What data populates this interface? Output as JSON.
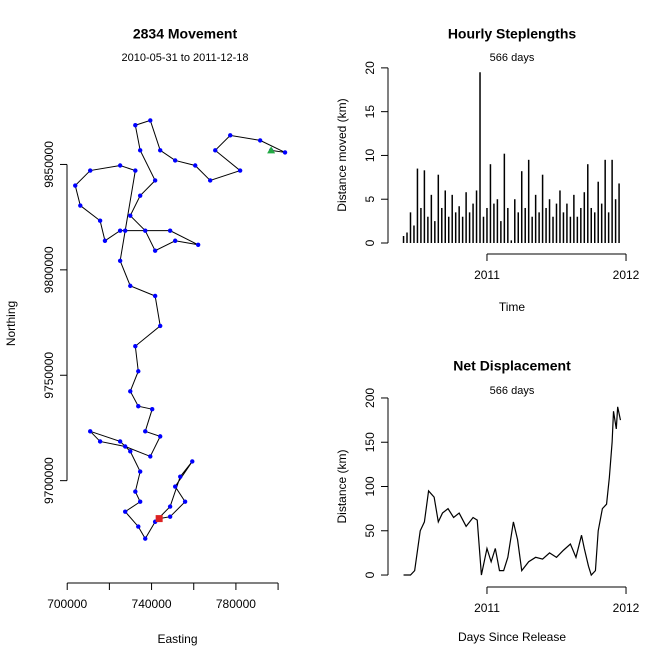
{
  "chart_data": [
    {
      "type": "track",
      "title": "2834 Movement",
      "subtitle": "2010-05-31 to 2011-12-18",
      "x_label": "Easting",
      "y_label": "Northing",
      "xlim": [
        698000,
        806600
      ],
      "ylim": [
        9650500,
        9898600
      ],
      "xticks": [
        700000,
        740000,
        780000
      ],
      "xminor_ticks": [
        720000,
        760000,
        800000
      ],
      "yticks": [
        9700000,
        9750000,
        9800000,
        9850000
      ],
      "line_color": "#000000",
      "point_color": "#0000ff",
      "start_color": "#22aa44",
      "end_color": "#dd2222",
      "x": [
        796700,
        803300,
        791500,
        777300,
        770200,
        782000,
        767800,
        760700,
        751200,
        744100,
        739400,
        732300,
        734600,
        741700,
        734600,
        729900,
        737000,
        741700,
        751200,
        762100,
        748800,
        725100,
        717900,
        715600,
        706200,
        703800,
        710900,
        725100,
        732300,
        727500,
        725100,
        729900,
        741700,
        744100,
        732300,
        733700,
        729900,
        733700,
        740300,
        737000,
        744100,
        739400,
        727500,
        715600,
        710900,
        725100,
        729900,
        734600,
        732300,
        734600,
        727500,
        733700,
        737000,
        741700,
        748800,
        753600,
        759300,
        751200,
        755900,
        748800,
        743600
      ],
      "y": [
        9856700,
        9855700,
        9861400,
        9863800,
        9856700,
        9847100,
        9842400,
        9849500,
        9851900,
        9856700,
        9870900,
        9868600,
        9856700,
        9842400,
        9835200,
        9825700,
        9818600,
        9809100,
        9813800,
        9811900,
        9818600,
        9818600,
        9813800,
        9823300,
        9830500,
        9840000,
        9847100,
        9849500,
        9847100,
        9818600,
        9804300,
        9792400,
        9787600,
        9773400,
        9763800,
        9751900,
        9742400,
        9735300,
        9733900,
        9723400,
        9721000,
        9711500,
        9716200,
        9718600,
        9723400,
        9718600,
        9713900,
        9704300,
        9694800,
        9690000,
        9685300,
        9678200,
        9672500,
        9680500,
        9687700,
        9701900,
        9709100,
        9697200,
        9690000,
        9682900,
        9682000
      ]
    },
    {
      "type": "spike",
      "title": "Hourly Steplengths",
      "subtitle": "566 days",
      "x_label": "Time",
      "y_label": "Distance moved (km)",
      "xlim": [
        2010.317,
        2012.043
      ],
      "ylim": [
        -0.8,
        20.9
      ],
      "xticks": [
        2011,
        2012
      ],
      "yticks": [
        0,
        5,
        10,
        15,
        20
      ],
      "color": "#000000",
      "x": [
        2010.4,
        2010.425,
        2010.45,
        2010.475,
        2010.5,
        2010.525,
        2010.55,
        2010.575,
        2010.6,
        2010.625,
        2010.65,
        2010.675,
        2010.7,
        2010.725,
        2010.75,
        2010.775,
        2010.8,
        2010.825,
        2010.85,
        2010.875,
        2010.9,
        2010.925,
        2010.95,
        2010.975,
        2011.0,
        2011.025,
        2011.05,
        2011.075,
        2011.1,
        2011.125,
        2011.15,
        2011.175,
        2011.2,
        2011.225,
        2011.25,
        2011.275,
        2011.3,
        2011.325,
        2011.35,
        2011.375,
        2011.4,
        2011.425,
        2011.45,
        2011.475,
        2011.5,
        2011.525,
        2011.55,
        2011.575,
        2011.6,
        2011.625,
        2011.65,
        2011.675,
        2011.7,
        2011.725,
        2011.75,
        2011.775,
        2011.8,
        2011.825,
        2011.85,
        2011.875,
        2011.9,
        2011.925,
        2011.95
      ],
      "values": [
        0.8,
        1.2,
        3.5,
        2,
        8.5,
        4,
        8.3,
        3,
        5.5,
        2.5,
        7.8,
        4,
        6,
        3,
        5.5,
        3.5,
        4.2,
        3,
        5.8,
        3.5,
        4.5,
        6,
        19.5,
        3,
        4,
        9,
        4.5,
        5,
        2.5,
        10.2,
        4,
        0.3,
        5,
        3.5,
        8.2,
        4,
        9.5,
        3,
        5.5,
        3.5,
        7.8,
        4,
        5,
        3,
        4.5,
        6,
        3.5,
        4.5,
        3,
        5.5,
        3,
        4,
        5.8,
        9,
        4,
        3.5,
        7,
        4.5,
        9.5,
        3.5,
        9.5,
        5,
        6.8
      ]
    },
    {
      "type": "line",
      "title": "Net Displacement",
      "subtitle": "566 days",
      "x_label": "Days Since Release",
      "y_label": "Distance (km)",
      "xlim": [
        2010.317,
        2012.043
      ],
      "ylim": [
        -9,
        209
      ],
      "xticks": [
        2011,
        2012
      ],
      "yticks": [
        0,
        50,
        100,
        150,
        200
      ],
      "color": "#000000",
      "x": [
        2010.4,
        2010.45,
        2010.48,
        2010.52,
        2010.55,
        2010.58,
        2010.62,
        2010.65,
        2010.68,
        2010.72,
        2010.76,
        2010.8,
        2010.85,
        2010.9,
        2010.93,
        2010.96,
        2011.0,
        2011.03,
        2011.06,
        2011.09,
        2011.12,
        2011.15,
        2011.19,
        2011.22,
        2011.25,
        2011.3,
        2011.35,
        2011.4,
        2011.45,
        2011.5,
        2011.55,
        2011.6,
        2011.64,
        2011.68,
        2011.7,
        2011.73,
        2011.75,
        2011.78,
        2011.8,
        2011.83,
        2011.86,
        2011.88,
        2011.9,
        2011.91,
        2011.93,
        2011.94,
        2011.96
      ],
      "values": [
        0,
        0,
        5,
        50,
        60,
        95,
        88,
        60,
        70,
        75,
        65,
        70,
        55,
        65,
        62,
        0,
        30,
        15,
        30,
        5,
        5,
        20,
        60,
        40,
        5,
        15,
        20,
        18,
        25,
        20,
        28,
        35,
        20,
        45,
        30,
        10,
        0,
        5,
        50,
        75,
        80,
        110,
        150,
        185,
        165,
        190,
        175
      ]
    }
  ]
}
